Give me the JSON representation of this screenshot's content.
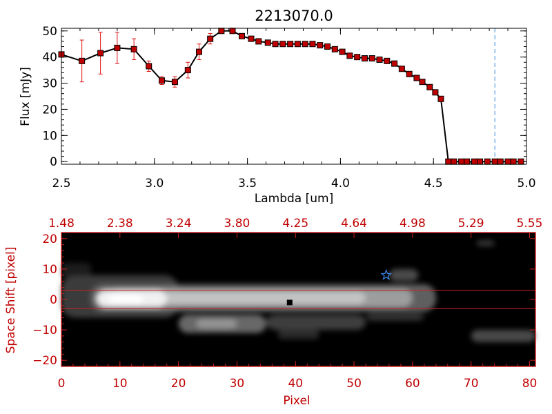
{
  "colors": {
    "axis_top": "#000000",
    "marker": "#c00000",
    "errorbar": "#e01010",
    "line": "#000000",
    "cutoff_line": "#3a8fe0",
    "axis_bottom": "#c82020",
    "image_bg": "#000000",
    "star": "#3a7fe0"
  },
  "chart_data": [
    {
      "type": "line",
      "title": "2213070.0",
      "xlabel": "Lambda [um]",
      "ylabel": "Flux [mJy]",
      "xlim": [
        2.5,
        5.0
      ],
      "ylim": [
        -1,
        51
      ],
      "x_ticks": [
        2.5,
        3.0,
        3.5,
        4.0,
        4.5,
        5.0
      ],
      "x_tick_labels": [
        "2.5",
        "3.0",
        "3.5",
        "4.0",
        "4.5",
        "5.0"
      ],
      "y_ticks": [
        0,
        10,
        20,
        30,
        40,
        50
      ],
      "y_tick_labels": [
        "0",
        "10",
        "20",
        "30",
        "40",
        "50"
      ],
      "vertical_dashed_line_x": 4.83,
      "series": [
        {
          "x": [
            2.5,
            2.61,
            2.71,
            2.8,
            2.89,
            2.97,
            3.04,
            3.11,
            3.18,
            3.24,
            3.3,
            3.36,
            3.42,
            3.47,
            3.52,
            3.56,
            3.61,
            3.65,
            3.69,
            3.73,
            3.77,
            3.81,
            3.85,
            3.89,
            3.93,
            3.97,
            4.01,
            4.05,
            4.09,
            4.13,
            4.17,
            4.21,
            4.25,
            4.29,
            4.33,
            4.37,
            4.41,
            4.44,
            4.48,
            4.51,
            4.54,
            4.58,
            4.61,
            4.65,
            4.68,
            4.72,
            4.75,
            4.79,
            4.83,
            4.86,
            4.9,
            4.93,
            4.97
          ],
          "y": [
            41,
            38.5,
            41.5,
            43.5,
            43,
            36.5,
            31,
            30.5,
            35,
            42,
            47,
            50,
            50,
            48,
            47,
            46,
            45.5,
            45,
            45,
            45,
            45,
            45,
            45,
            44.5,
            44,
            43,
            42,
            40.5,
            40,
            39.5,
            39.5,
            39,
            38.5,
            37.5,
            35.5,
            33.5,
            32,
            30.5,
            28.5,
            26.5,
            24,
            0,
            0,
            0,
            0,
            0,
            0,
            0,
            0,
            0,
            0,
            0,
            0
          ],
          "yerr": [
            null,
            8,
            8,
            6,
            4,
            2,
            1.5,
            2,
            3,
            3,
            2,
            1,
            1,
            null,
            null,
            null,
            null,
            null,
            null,
            null,
            null,
            null,
            null,
            null,
            null,
            null,
            null,
            null,
            null,
            null,
            null,
            null,
            null,
            null,
            null,
            null,
            null,
            null,
            null,
            null,
            null,
            null,
            null,
            null,
            null,
            null,
            null,
            null,
            null,
            null,
            null,
            null,
            null
          ]
        }
      ]
    },
    {
      "type": "heatmap",
      "xlabel": "Pixel",
      "ylabel": "Space Shift [pixel]",
      "xlim": [
        0,
        81
      ],
      "ylim": [
        -22,
        22
      ],
      "x_ticks": [
        0,
        10,
        20,
        30,
        40,
        50,
        60,
        70,
        80
      ],
      "x_tick_labels": [
        "0",
        "10",
        "20",
        "30",
        "40",
        "50",
        "60",
        "70",
        "80"
      ],
      "y_ticks": [
        -20,
        -10,
        0,
        10,
        20
      ],
      "y_tick_labels": [
        "−20",
        "−10",
        "0",
        "10",
        "20"
      ],
      "top_tick_labels": [
        "1.48",
        "2.38",
        "3.24",
        "3.80",
        "4.25",
        "4.64",
        "4.98",
        "5.29",
        "5.55"
      ],
      "horizontal_lines_y": [
        3,
        -3
      ],
      "star_marker": {
        "x": 55.5,
        "y": 8
      }
    }
  ]
}
